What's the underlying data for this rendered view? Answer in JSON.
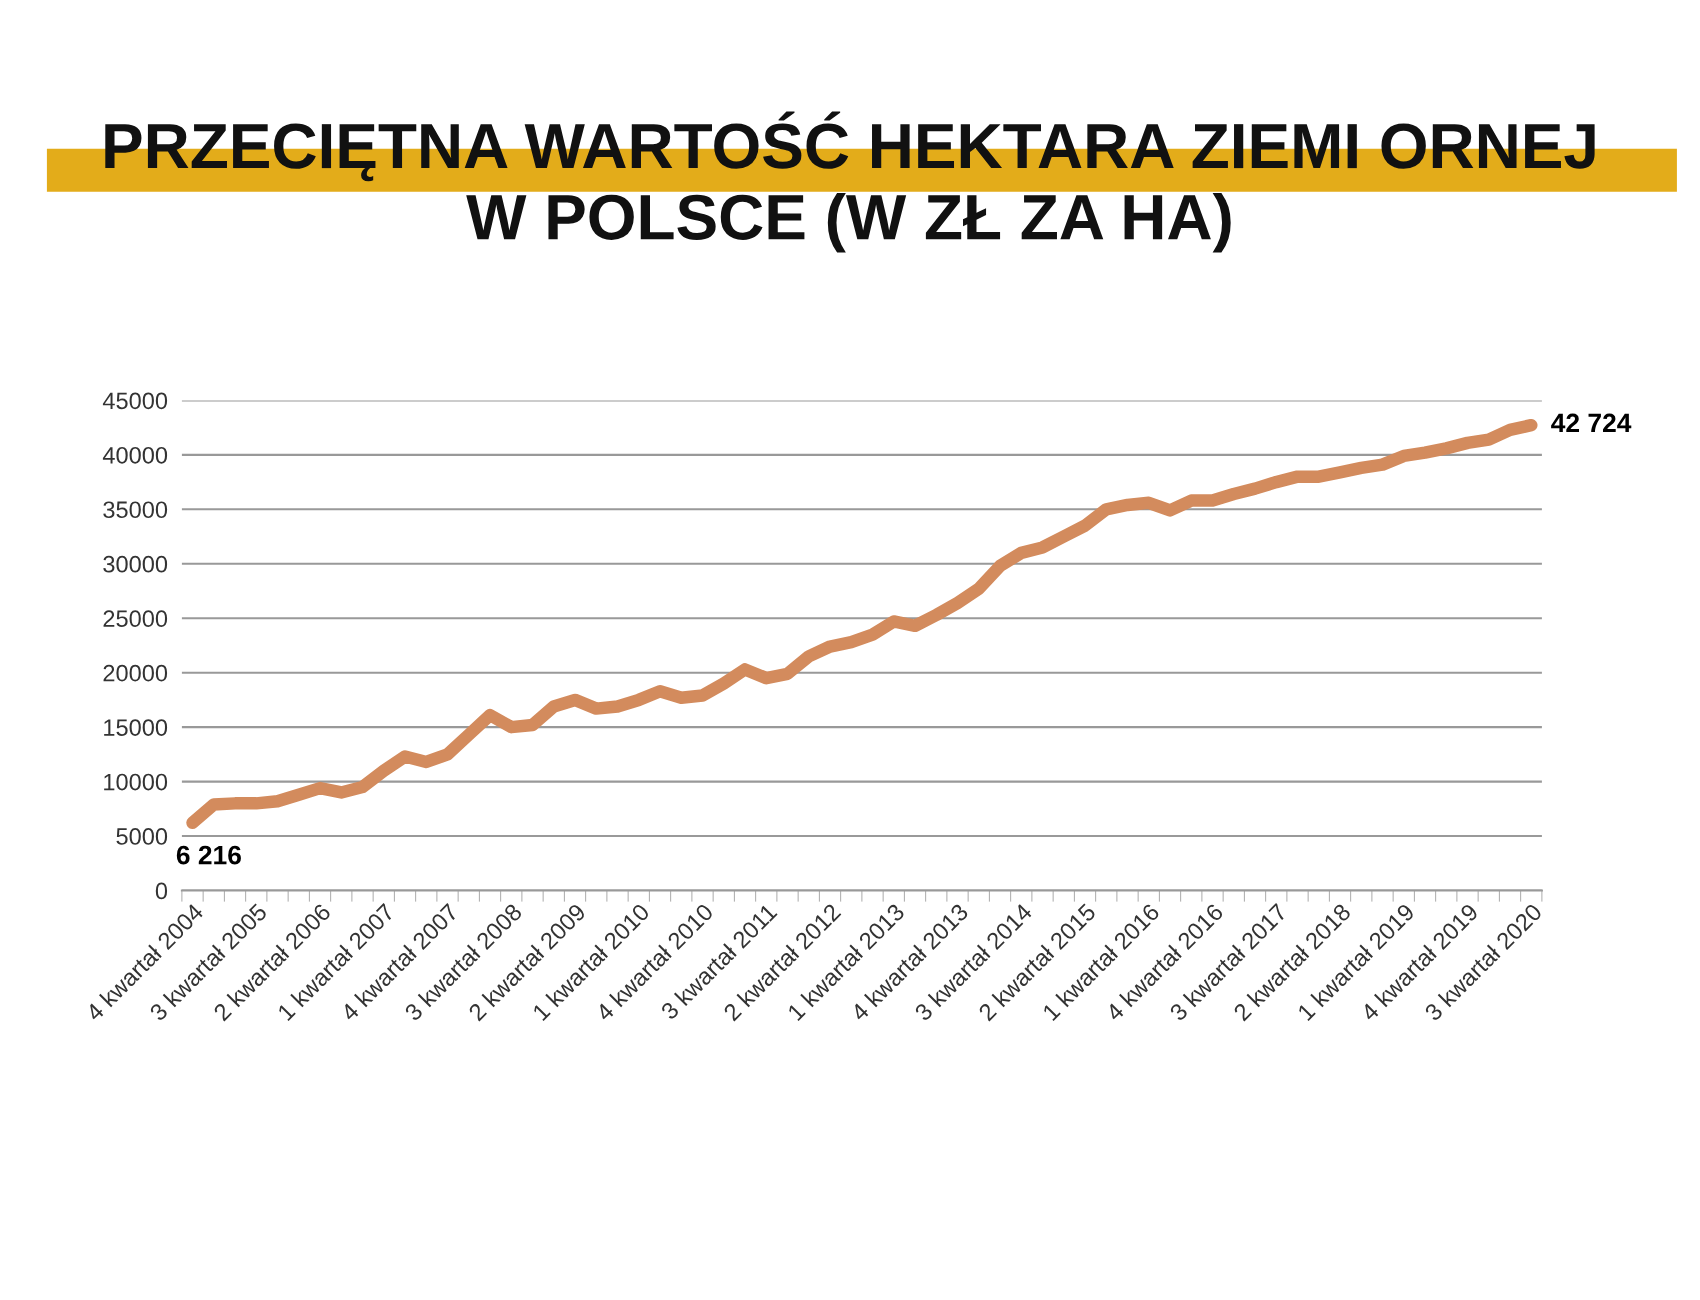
{
  "chart_data": {
    "type": "line",
    "title": "PRZECIĘTNA WARTOŚĆ HEKTARA ZIEMI ORNEJ\nW POLSCE (W ZŁ ZA HA)",
    "categories": [
      "4 kwartał 2004",
      null,
      null,
      "3 kwartał 2005",
      null,
      null,
      "2 kwartał 2006",
      null,
      null,
      "1 kwartał 2007",
      null,
      null,
      "4 kwartał 2007",
      null,
      null,
      "3 kwartał 2008",
      null,
      null,
      "2 kwartał 2009",
      null,
      null,
      "1 kwartał 2010",
      null,
      null,
      "4 kwartał 2010",
      null,
      null,
      "3 kwartał 2011",
      null,
      null,
      "2 kwartał 2012",
      null,
      null,
      "1 kwartał 2013",
      null,
      null,
      "4 kwartał 2013",
      null,
      null,
      "3 kwartał 2014",
      null,
      null,
      "2 kwartał 2015",
      null,
      null,
      "1 kwartał 2016",
      null,
      null,
      "4 kwartał 2016",
      null,
      null,
      "3 kwartał 2017",
      null,
      null,
      "2 kwartał 2018",
      null,
      null,
      "1 kwartał 2019",
      null,
      null,
      "4 kwartał 2019",
      null,
      null,
      "3 kwartał 2020"
    ],
    "series": [
      {
        "color": "#d38b5d",
        "values": [
          6216,
          7900,
          8000,
          8000,
          8200,
          8800,
          9400,
          9000,
          9500,
          11000,
          12300,
          11800,
          12500,
          14300,
          16100,
          15000,
          15200,
          16900,
          17500,
          16700,
          16900,
          17500,
          18300,
          17700,
          17900,
          19000,
          20300,
          19500,
          19900,
          21500,
          22400,
          22800,
          23500,
          24700,
          24300,
          25300,
          26400,
          27700,
          29800,
          31000,
          31500,
          32500,
          33500,
          35000,
          35400,
          35600,
          34900,
          35800,
          35800,
          36400,
          36900,
          37500,
          38000,
          38000,
          38400,
          38800,
          39100,
          39900,
          40200,
          40600,
          41100,
          41400,
          42300,
          42724
        ],
        "value_labels": [
          "6 216",
          null,
          null,
          null,
          null,
          null,
          null,
          null,
          null,
          null,
          null,
          null,
          null,
          null,
          null,
          null,
          null,
          null,
          null,
          null,
          null,
          null,
          null,
          null,
          null,
          null,
          null,
          null,
          null,
          null,
          null,
          null,
          null,
          null,
          null,
          null,
          null,
          null,
          null,
          null,
          null,
          null,
          null,
          null,
          null,
          null,
          null,
          null,
          null,
          null,
          null,
          null,
          null,
          null,
          null,
          null,
          null,
          null,
          null,
          null,
          null,
          null,
          null,
          "42 724"
        ]
      }
    ],
    "ylim": [
      0,
      45000
    ],
    "yticks": [
      0,
      5000,
      10000,
      15000,
      20000,
      25000,
      30000,
      35000,
      40000,
      45000
    ],
    "grid": "y",
    "legend": false,
    "line_style": "solid"
  }
}
